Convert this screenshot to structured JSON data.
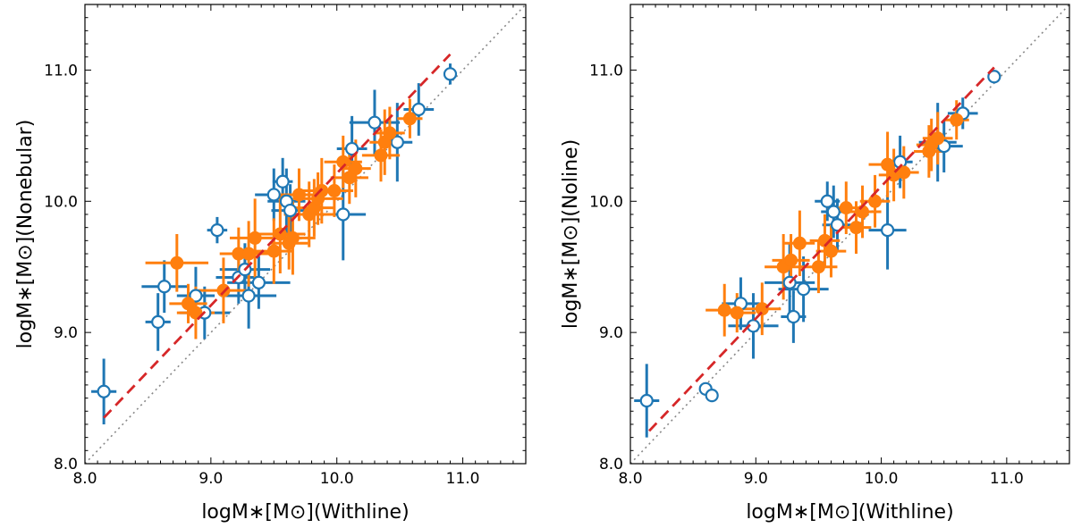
{
  "chart_data": [
    {
      "type": "scatter",
      "panel": "left",
      "xlabel": "logM∗[M⊙](Withline)",
      "ylabel": "logM∗[M⊙](Nonebular)",
      "xlim": [
        8.0,
        11.5
      ],
      "ylim": [
        8.0,
        11.5
      ],
      "xticks": [
        "8.0",
        "9.0",
        "10.0",
        "11.0"
      ],
      "yticks": [
        "8.0",
        "9.0",
        "10.0",
        "11.0"
      ],
      "grid": false,
      "colors": {
        "blue": "#1f77b4",
        "orange": "#ff7f0e",
        "fit": "#d62728",
        "one_to_one": "#888888"
      },
      "one_to_one_line": {
        "x": [
          8.0,
          11.5
        ],
        "y": [
          8.0,
          11.5
        ]
      },
      "fit_line": {
        "x": [
          8.15,
          10.9
        ],
        "y": [
          8.35,
          11.12
        ]
      },
      "series": [
        {
          "marker": "open-circle",
          "color": "#1f77b4",
          "points": [
            {
              "x": 8.15,
              "y": 8.55,
              "xerr": 0.1,
              "yerr": 0.25
            },
            {
              "x": 8.58,
              "y": 9.08,
              "xerr": 0.1,
              "yerr": 0.22
            },
            {
              "x": 8.63,
              "y": 9.35,
              "xerr": 0.18,
              "yerr": 0.2
            },
            {
              "x": 8.88,
              "y": 9.28,
              "xerr": 0.15,
              "yerr": 0.22
            },
            {
              "x": 8.95,
              "y": 9.15,
              "xerr": 0.2,
              "yerr": 0.2
            },
            {
              "x": 9.05,
              "y": 9.78,
              "xerr": 0.08,
              "yerr": 0.1
            },
            {
              "x": 9.22,
              "y": 9.42,
              "xerr": 0.18,
              "yerr": 0.2
            },
            {
              "x": 9.27,
              "y": 9.48,
              "xerr": 0.2,
              "yerr": 0.2
            },
            {
              "x": 9.3,
              "y": 9.28,
              "xerr": 0.22,
              "yerr": 0.25
            },
            {
              "x": 9.38,
              "y": 9.38,
              "xerr": 0.25,
              "yerr": 0.2
            },
            {
              "x": 9.5,
              "y": 10.05,
              "xerr": 0.15,
              "yerr": 0.2
            },
            {
              "x": 9.57,
              "y": 10.15,
              "xerr": 0.08,
              "yerr": 0.18
            },
            {
              "x": 9.6,
              "y": 10.0,
              "xerr": 0.15,
              "yerr": 0.25
            },
            {
              "x": 9.63,
              "y": 9.93,
              "xerr": 0.15,
              "yerr": 0.2
            },
            {
              "x": 10.05,
              "y": 9.9,
              "xerr": 0.18,
              "yerr": 0.35
            },
            {
              "x": 10.12,
              "y": 10.4,
              "xerr": 0.12,
              "yerr": 0.25
            },
            {
              "x": 10.3,
              "y": 10.6,
              "xerr": 0.2,
              "yerr": 0.25
            },
            {
              "x": 10.48,
              "y": 10.45,
              "xerr": 0.12,
              "yerr": 0.3
            },
            {
              "x": 10.65,
              "y": 10.7,
              "xerr": 0.12,
              "yerr": 0.2
            },
            {
              "x": 10.9,
              "y": 10.97,
              "xerr": 0.05,
              "yerr": 0.08
            }
          ]
        },
        {
          "marker": "filled-circle",
          "color": "#ff7f0e",
          "points": [
            {
              "x": 8.73,
              "y": 9.53,
              "xerr": 0.25,
              "yerr": 0.22
            },
            {
              "x": 8.82,
              "y": 9.22,
              "xerr": 0.15,
              "yerr": 0.15
            },
            {
              "x": 8.88,
              "y": 9.15,
              "xerr": 0.15,
              "yerr": 0.2
            },
            {
              "x": 9.1,
              "y": 9.32,
              "xerr": 0.2,
              "yerr": 0.25
            },
            {
              "x": 9.22,
              "y": 9.6,
              "xerr": 0.15,
              "yerr": 0.2
            },
            {
              "x": 9.3,
              "y": 9.6,
              "xerr": 0.2,
              "yerr": 0.25
            },
            {
              "x": 9.35,
              "y": 9.72,
              "xerr": 0.2,
              "yerr": 0.3
            },
            {
              "x": 9.5,
              "y": 9.62,
              "xerr": 0.15,
              "yerr": 0.25
            },
            {
              "x": 9.55,
              "y": 9.75,
              "xerr": 0.2,
              "yerr": 0.3
            },
            {
              "x": 9.62,
              "y": 9.68,
              "xerr": 0.15,
              "yerr": 0.2
            },
            {
              "x": 9.65,
              "y": 9.72,
              "xerr": 0.18,
              "yerr": 0.28
            },
            {
              "x": 9.7,
              "y": 10.05,
              "xerr": 0.15,
              "yerr": 0.2
            },
            {
              "x": 9.78,
              "y": 9.9,
              "xerr": 0.2,
              "yerr": 0.25
            },
            {
              "x": 9.82,
              "y": 9.95,
              "xerr": 0.15,
              "yerr": 0.22
            },
            {
              "x": 9.85,
              "y": 10.02,
              "xerr": 0.2,
              "yerr": 0.2
            },
            {
              "x": 9.88,
              "y": 10.08,
              "xerr": 0.15,
              "yerr": 0.25
            },
            {
              "x": 9.98,
              "y": 10.08,
              "xerr": 0.15,
              "yerr": 0.2
            },
            {
              "x": 10.05,
              "y": 10.3,
              "xerr": 0.15,
              "yerr": 0.2
            },
            {
              "x": 10.1,
              "y": 10.18,
              "xerr": 0.15,
              "yerr": 0.2
            },
            {
              "x": 10.15,
              "y": 10.25,
              "xerr": 0.12,
              "yerr": 0.22
            },
            {
              "x": 10.35,
              "y": 10.35,
              "xerr": 0.15,
              "yerr": 0.2
            },
            {
              "x": 10.38,
              "y": 10.45,
              "xerr": 0.12,
              "yerr": 0.25
            },
            {
              "x": 10.42,
              "y": 10.52,
              "xerr": 0.12,
              "yerr": 0.2
            },
            {
              "x": 10.58,
              "y": 10.63,
              "xerr": 0.1,
              "yerr": 0.15
            }
          ]
        }
      ]
    },
    {
      "type": "scatter",
      "panel": "right",
      "xlabel": "logM∗[M⊙](Withline)",
      "ylabel": "logM∗[M⊙](Noline)",
      "xlim": [
        8.0,
        11.5
      ],
      "ylim": [
        8.0,
        11.5
      ],
      "xticks": [
        "8.0",
        "9.0",
        "10.0",
        "11.0"
      ],
      "yticks": [
        "8.0",
        "9.0",
        "10.0",
        "11.0"
      ],
      "grid": false,
      "colors": {
        "blue": "#1f77b4",
        "orange": "#ff7f0e",
        "fit": "#d62728",
        "one_to_one": "#888888"
      },
      "one_to_one_line": {
        "x": [
          8.0,
          11.5
        ],
        "y": [
          8.0,
          11.5
        ]
      },
      "fit_line": {
        "x": [
          8.15,
          10.9
        ],
        "y": [
          8.25,
          11.02
        ]
      },
      "series": [
        {
          "marker": "open-circle",
          "color": "#1f77b4",
          "points": [
            {
              "x": 8.13,
              "y": 8.48,
              "xerr": 0.1,
              "yerr": 0.28
            },
            {
              "x": 8.6,
              "y": 8.57,
              "xerr": 0.05,
              "yerr": 0.05
            },
            {
              "x": 8.65,
              "y": 8.52,
              "xerr": 0.05,
              "yerr": 0.05
            },
            {
              "x": 8.88,
              "y": 9.22,
              "xerr": 0.15,
              "yerr": 0.2
            },
            {
              "x": 8.98,
              "y": 9.05,
              "xerr": 0.2,
              "yerr": 0.25
            },
            {
              "x": 9.27,
              "y": 9.38,
              "xerr": 0.2,
              "yerr": 0.3
            },
            {
              "x": 9.3,
              "y": 9.12,
              "xerr": 0.1,
              "yerr": 0.2
            },
            {
              "x": 9.38,
              "y": 9.33,
              "xerr": 0.2,
              "yerr": 0.25
            },
            {
              "x": 9.57,
              "y": 10.0,
              "xerr": 0.1,
              "yerr": 0.15
            },
            {
              "x": 9.62,
              "y": 9.92,
              "xerr": 0.1,
              "yerr": 0.2
            },
            {
              "x": 9.65,
              "y": 9.82,
              "xerr": 0.12,
              "yerr": 0.2
            },
            {
              "x": 10.05,
              "y": 9.78,
              "xerr": 0.15,
              "yerr": 0.3
            },
            {
              "x": 10.15,
              "y": 10.3,
              "xerr": 0.1,
              "yerr": 0.2
            },
            {
              "x": 10.45,
              "y": 10.45,
              "xerr": 0.15,
              "yerr": 0.3
            },
            {
              "x": 10.5,
              "y": 10.42,
              "xerr": 0.15,
              "yerr": 0.2
            },
            {
              "x": 10.65,
              "y": 10.67,
              "xerr": 0.12,
              "yerr": 0.12
            },
            {
              "x": 10.9,
              "y": 10.95,
              "xerr": 0.05,
              "yerr": 0.05
            }
          ]
        },
        {
          "marker": "filled-circle",
          "color": "#ff7f0e",
          "points": [
            {
              "x": 8.75,
              "y": 9.17,
              "xerr": 0.15,
              "yerr": 0.2
            },
            {
              "x": 8.85,
              "y": 9.15,
              "xerr": 0.15,
              "yerr": 0.15
            },
            {
              "x": 9.05,
              "y": 9.18,
              "xerr": 0.15,
              "yerr": 0.2
            },
            {
              "x": 9.22,
              "y": 9.5,
              "xerr": 0.15,
              "yerr": 0.25
            },
            {
              "x": 9.28,
              "y": 9.55,
              "xerr": 0.15,
              "yerr": 0.2
            },
            {
              "x": 9.35,
              "y": 9.68,
              "xerr": 0.12,
              "yerr": 0.25
            },
            {
              "x": 9.5,
              "y": 9.5,
              "xerr": 0.15,
              "yerr": 0.2
            },
            {
              "x": 9.55,
              "y": 9.7,
              "xerr": 0.12,
              "yerr": 0.2
            },
            {
              "x": 9.6,
              "y": 9.62,
              "xerr": 0.12,
              "yerr": 0.2
            },
            {
              "x": 9.72,
              "y": 9.95,
              "xerr": 0.15,
              "yerr": 0.2
            },
            {
              "x": 9.8,
              "y": 9.8,
              "xerr": 0.12,
              "yerr": 0.2
            },
            {
              "x": 9.85,
              "y": 9.92,
              "xerr": 0.15,
              "yerr": 0.2
            },
            {
              "x": 9.95,
              "y": 10.0,
              "xerr": 0.12,
              "yerr": 0.2
            },
            {
              "x": 10.05,
              "y": 10.28,
              "xerr": 0.15,
              "yerr": 0.25
            },
            {
              "x": 10.1,
              "y": 10.2,
              "xerr": 0.12,
              "yerr": 0.2
            },
            {
              "x": 10.18,
              "y": 10.22,
              "xerr": 0.12,
              "yerr": 0.2
            },
            {
              "x": 10.38,
              "y": 10.38,
              "xerr": 0.12,
              "yerr": 0.2
            },
            {
              "x": 10.4,
              "y": 10.43,
              "xerr": 0.12,
              "yerr": 0.2
            },
            {
              "x": 10.45,
              "y": 10.48,
              "xerr": 0.12,
              "yerr": 0.2
            },
            {
              "x": 10.6,
              "y": 10.62,
              "xerr": 0.1,
              "yerr": 0.15
            }
          ]
        }
      ]
    }
  ]
}
